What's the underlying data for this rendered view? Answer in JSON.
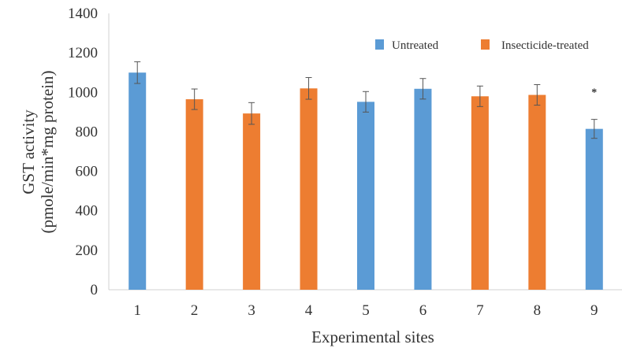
{
  "chart_data": {
    "type": "bar",
    "categories": [
      "1",
      "2",
      "3",
      "4",
      "5",
      "6",
      "7",
      "8",
      "9"
    ],
    "values": [
      1100,
      965,
      893,
      1020,
      952,
      1018,
      980,
      987,
      815
    ],
    "errors": [
      55,
      52,
      55,
      55,
      52,
      52,
      52,
      52,
      48
    ],
    "groups": [
      "Untreated",
      "Insecticide-treated",
      "Insecticide-treated",
      "Insecticide-treated",
      "Untreated",
      "Untreated",
      "Insecticide-treated",
      "Insecticide-treated",
      "Untreated"
    ],
    "series": [
      {
        "name": "Untreated",
        "color": "#5b9bd5"
      },
      {
        "name": "Insecticide-treated",
        "color": "#ed7d31"
      }
    ],
    "title": "",
    "xlabel": "Experimental sites",
    "ylabel_line1": "GST activity",
    "ylabel_line2": "(pmole/min*mg protein)",
    "ylim": [
      0,
      1400
    ],
    "yticks": [
      0,
      200,
      400,
      600,
      800,
      1000,
      1200,
      1400
    ],
    "grid": false,
    "legend": "top-right",
    "annotations": [
      {
        "category": "9",
        "text": "*"
      }
    ]
  }
}
